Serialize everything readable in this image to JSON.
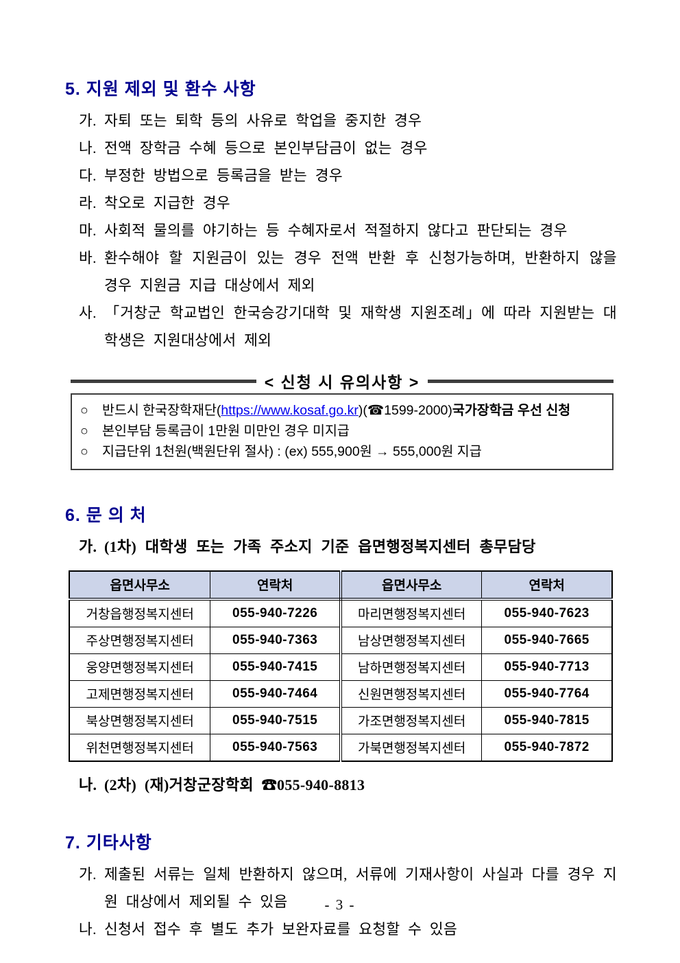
{
  "colors": {
    "heading": "#000090",
    "link": "#0000ee",
    "table_header_bg": "#ccd4e9",
    "box_border": "#3d3d3d"
  },
  "section5": {
    "title": "5. 지원 제외 및 환수 사항",
    "items": [
      {
        "marker": "가.",
        "text": "자퇴 또는 퇴학 등의 사유로 학업을 중지한 경우"
      },
      {
        "marker": "나.",
        "text": "전액 장학금 수혜 등으로 본인부담금이 없는 경우"
      },
      {
        "marker": "다.",
        "text": "부정한 방법으로 등록금을 받는 경우"
      },
      {
        "marker": "라.",
        "text": "착오로 지급한 경우"
      },
      {
        "marker": "마.",
        "text": "사회적 물의를 야기하는 등 수혜자로서 적절하지 않다고 판단되는 경우"
      },
      {
        "marker": "바.",
        "text": "환수해야 할 지원금이 있는 경우 전액 반환 후 신청가능하며, 반환하지 않을 경우 지원금 지급 대상에서 제외"
      },
      {
        "marker": "사.",
        "text": "「거창군 학교법인 한국승강기대학 및 재학생 지원조례」에 따라 지원받는 대학생은 지원대상에서 제외"
      }
    ]
  },
  "notice_box": {
    "title": "< 신청 시 유의사항 >",
    "item1": {
      "bullet": "○",
      "prefix": "반드시 한국장학재단(",
      "link": "https://www.kosaf.go.kr",
      "middle": ")(☎1599-2000)",
      "bold": "국가장학금 우선 신청"
    },
    "item2": {
      "bullet": "○",
      "text": "본인부담 등록금이 1만원 미만인 경우 미지급"
    },
    "item3": {
      "bullet": "○",
      "text": "지급단위 1천원(백원단위 절사) : (ex) 555,900원 → 555,000원 지급"
    }
  },
  "section6": {
    "title": "6. 문 의 처",
    "item_a": {
      "marker": "가.",
      "text": "(1차) 대학생 또는 가족 주소지 기준 읍면행정복지센터 총무담당"
    },
    "table": {
      "headers": [
        "읍면사무소",
        "연락처",
        "읍면사무소",
        "연락처"
      ],
      "rows": [
        [
          "거창읍행정복지센터",
          "055-940-7226",
          "마리면행정복지센터",
          "055-940-7623"
        ],
        [
          "주상면행정복지센터",
          "055-940-7363",
          "남상면행정복지센터",
          "055-940-7665"
        ],
        [
          "웅양면행정복지센터",
          "055-940-7415",
          "남하면행정복지센터",
          "055-940-7713"
        ],
        [
          "고제면행정복지센터",
          "055-940-7464",
          "신원면행정복지센터",
          "055-940-7764"
        ],
        [
          "북상면행정복지센터",
          "055-940-7515",
          "가조면행정복지센터",
          "055-940-7815"
        ],
        [
          "위천면행정복지센터",
          "055-940-7563",
          "가북면행정복지센터",
          "055-940-7872"
        ]
      ]
    },
    "item_b": {
      "marker": "나.",
      "text": "(2차) (재)거창군장학회 ☎055-940-8813"
    }
  },
  "section7": {
    "title": "7. 기타사항",
    "items": [
      {
        "marker": "가.",
        "text": "제출된 서류는 일체 반환하지 않으며, 서류에 기재사항이 사실과 다를 경우 지원 대상에서 제외될 수 있음"
      },
      {
        "marker": "나.",
        "text": "신청서 접수 후 별도 추가 보완자료를 요청할 수 있음"
      }
    ]
  },
  "page": {
    "number_label": "- 3 -"
  }
}
